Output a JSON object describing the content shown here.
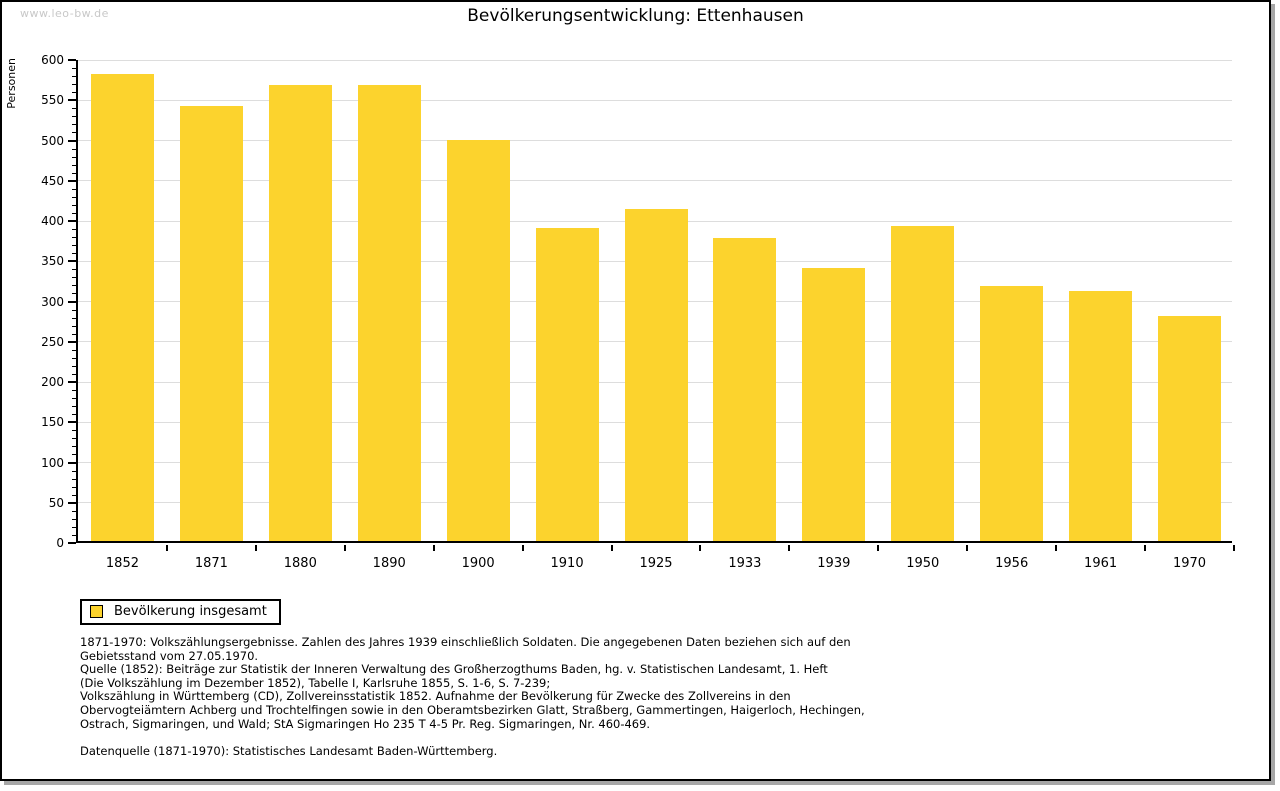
{
  "page": {
    "watermark": "www.leo-bw.de",
    "title": "Bevölkerungsentwicklung: Ettenhausen"
  },
  "chart_data": {
    "type": "bar",
    "title": "Bevölkerungsentwicklung: Ettenhausen",
    "xlabel": "",
    "ylabel": "Personen",
    "categories": [
      "1852",
      "1871",
      "1880",
      "1890",
      "1900",
      "1910",
      "1925",
      "1933",
      "1939",
      "1950",
      "1956",
      "1961",
      "1970"
    ],
    "series": [
      {
        "name": "Bevölkerung insgesamt",
        "values": [
          580,
          540,
          566,
          566,
          498,
          389,
          413,
          377,
          339,
          391,
          317,
          310,
          280
        ]
      }
    ],
    "ylim": [
      0,
      600
    ],
    "ytick_step": 50,
    "yminor_step": 10,
    "grid": true,
    "legend_position": "bottom-left",
    "bar_color": "#FCD32D",
    "grid_color": "#dddddd"
  },
  "legend": {
    "label": "Bevölkerung insgesamt"
  },
  "footer": {
    "lines": [
      "1871-1970: Volkszählungsergebnisse. Zahlen des Jahres 1939 einschließlich Soldaten. Die angegebenen Daten beziehen sich auf den",
      "Gebietsstand vom 27.05.1970.",
      "Quelle (1852): Beiträge zur Statistik der Inneren Verwaltung des Großherzogthums Baden, hg. v. Statistischen Landesamt, 1. Heft",
      "(Die Volkszählung im Dezember 1852), Tabelle I, Karlsruhe 1855, S. 1-6, S. 7-239;",
      "Volkszählung in Württemberg (CD), Zollvereinsstatistik 1852. Aufnahme der Bevölkerung für Zwecke des Zollvereins in den",
      "Obervogteiämtern Achberg und Trochtelfingen sowie in den Oberamtsbezirken Glatt, Straßberg, Gammertingen, Haigerloch, Hechingen,",
      "Ostrach, Sigmaringen, und Wald; StA Sigmaringen Ho 235 T 4-5 Pr. Reg. Sigmaringen, Nr. 460-469."
    ],
    "datasource": "Datenquelle (1871-1970): Statistisches Landesamt Baden-Württemberg."
  },
  "colors": {
    "bar": "#FCD32D",
    "grid": "#dddddd",
    "watermark": "#c8c8c8",
    "shadow": "#a7a7a7",
    "axis": "#000000"
  }
}
